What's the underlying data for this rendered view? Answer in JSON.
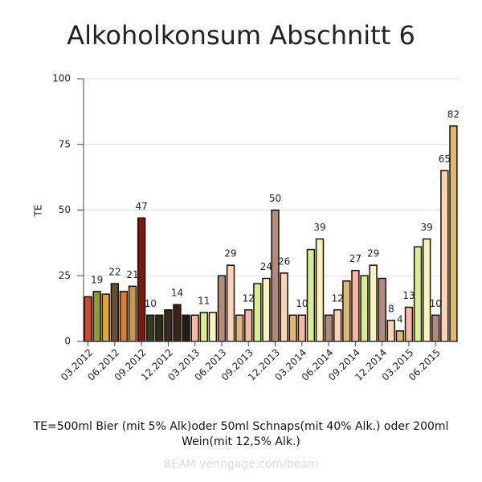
{
  "chart_data": {
    "type": "bar",
    "title": "Alkoholkonsum Abschnitt 6",
    "y_label": "TE",
    "footnote": "TE=500ml Bier (mit 5% Alk)oder 50ml Schnaps(mit 40% Alk.) oder 200ml Wein(mit 12,5% Alk.)",
    "watermark": "BEAM venngage.com/beam",
    "categories": [
      "03.2012",
      null,
      null,
      "06.2012",
      null,
      null,
      "09.2012",
      null,
      null,
      "12.2012",
      null,
      null,
      "03.2013",
      null,
      null,
      "06.2013",
      null,
      null,
      "09.2013",
      null,
      null,
      "12.2013",
      null,
      null,
      "03.2014",
      null,
      null,
      "06.2014",
      null,
      null,
      "09.2014",
      null,
      null,
      "12.2014",
      null,
      null,
      "03.2015",
      null,
      null,
      "06.2015",
      null,
      null
    ],
    "values": [
      17,
      19,
      18,
      22,
      19,
      21,
      47,
      10,
      10,
      12,
      14,
      10,
      10,
      11,
      11,
      25,
      29,
      10,
      12,
      22,
      24,
      50,
      26,
      10,
      10,
      35,
      39,
      10,
      12,
      23,
      27,
      25,
      29,
      24,
      8,
      4,
      13,
      36,
      39,
      10,
      65,
      82
    ],
    "value_labels": [
      null,
      "19",
      null,
      "22",
      null,
      "21",
      "47",
      "10",
      null,
      null,
      "14",
      null,
      null,
      "11",
      null,
      null,
      "29",
      null,
      "12",
      null,
      "24",
      "50",
      "26",
      null,
      "10",
      null,
      "39",
      null,
      "12",
      null,
      "27",
      null,
      "29",
      null,
      "8",
      "4",
      "13",
      null,
      "39",
      "10",
      "65",
      "82"
    ],
    "colors": [
      "#d9432b",
      "#8a9b3a",
      "#e8a630",
      "#6b4a35",
      "#d97b2b",
      "#c6964b",
      "#7a1a0a",
      "#3a3a1a",
      "#2e2e10",
      "#3a2a1a",
      "#3b2415",
      "#1f1f10",
      "#f7b7a3",
      "#d9ec8f",
      "#fdf2b8",
      "#b48a7a",
      "#fdd3b5",
      "#e0b870",
      "#f7b7a3",
      "#d9ec8f",
      "#fdf2b8",
      "#b48a7a",
      "#fdd3b5",
      "#e0b870",
      "#f7b7a3",
      "#d9ec8f",
      "#fdf2b8",
      "#b48a7a",
      "#fdd3b5",
      "#e0b870",
      "#f7b7a3",
      "#d9ec8f",
      "#fdf2b8",
      "#b48a7a",
      "#fdd3b5",
      "#e0b870",
      "#f7b7a3",
      "#d9ec8f",
      "#fdf2b8",
      "#b48a7a",
      "#fdd3b5",
      "#e0b870"
    ],
    "ylim": [
      0,
      100
    ],
    "yticks": [
      0,
      25,
      50,
      75,
      100
    ],
    "grid": true
  }
}
